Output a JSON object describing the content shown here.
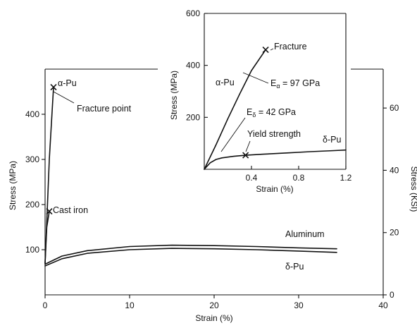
{
  "chart_data": [
    {
      "type": "line",
      "xlabel": "Strain (%)",
      "ylabel": "Stress (MPa)",
      "ylabel_right": "Stress (KSI)",
      "xlim": [
        0,
        40
      ],
      "ylim": [
        0,
        500
      ],
      "ylim_right": [
        0,
        72.5
      ],
      "x_ticks": [
        0,
        10,
        20,
        30,
        40
      ],
      "y_ticks": [
        100,
        200,
        300,
        400
      ],
      "y_ticks_right": [
        0,
        20,
        40,
        60
      ],
      "series": [
        {
          "name": "α-Pu",
          "x": [
            0,
            0.5,
            1.0
          ],
          "y": [
            70,
            300,
            460
          ],
          "end_marker": "x"
        },
        {
          "name": "Cast iron",
          "x": [
            0,
            0.2,
            0.5
          ],
          "y": [
            70,
            150,
            185
          ],
          "end_marker": "x"
        },
        {
          "name": "Aluminum",
          "x": [
            0,
            2,
            5,
            10,
            15,
            20,
            25,
            30,
            34.5
          ],
          "y": [
            68,
            86,
            98,
            107,
            110,
            109,
            107,
            104,
            102
          ]
        },
        {
          "name": "δ-Pu",
          "x": [
            0,
            2,
            5,
            10,
            15,
            20,
            25,
            30,
            34.5
          ],
          "y": [
            64,
            80,
            92,
            100,
            103,
            102,
            100,
            97,
            94
          ]
        }
      ],
      "annotations": [
        {
          "text": "Fracture point",
          "x": 1.0,
          "y": 460
        }
      ]
    },
    {
      "type": "line",
      "xlabel": "Strain (%)",
      "ylabel": "Stress (MPa)",
      "xlim": [
        0,
        1.2
      ],
      "ylim": [
        0,
        600
      ],
      "x_ticks": [
        0.4,
        0.8,
        1.2
      ],
      "y_ticks": [
        200,
        400,
        600
      ],
      "series": [
        {
          "name": "α-Pu",
          "x": [
            0,
            0.1,
            0.2,
            0.3,
            0.4,
            0.52
          ],
          "y": [
            0,
            95,
            195,
            290,
            380,
            460
          ],
          "end_marker": "x"
        },
        {
          "name": "δ-Pu",
          "x": [
            0,
            0.05,
            0.1,
            0.15,
            0.25,
            0.35,
            0.5,
            0.7,
            0.9,
            1.1,
            1.2
          ],
          "y": [
            0,
            25,
            38,
            44,
            50,
            54,
            58,
            63,
            68,
            72,
            74
          ],
          "marker_at": {
            "x": 0.35,
            "y": 54,
            "symbol": "x"
          }
        }
      ],
      "annotations": [
        {
          "text": "Fracture",
          "x": 0.52,
          "y": 460
        },
        {
          "text": "Yield strength",
          "x": 0.35,
          "y": 54
        }
      ],
      "modulus_labels": [
        {
          "symbol": "E",
          "sub": "α",
          "value": "97 GPa"
        },
        {
          "symbol": "E",
          "sub": "δ",
          "value": "42 GPa"
        }
      ]
    }
  ]
}
